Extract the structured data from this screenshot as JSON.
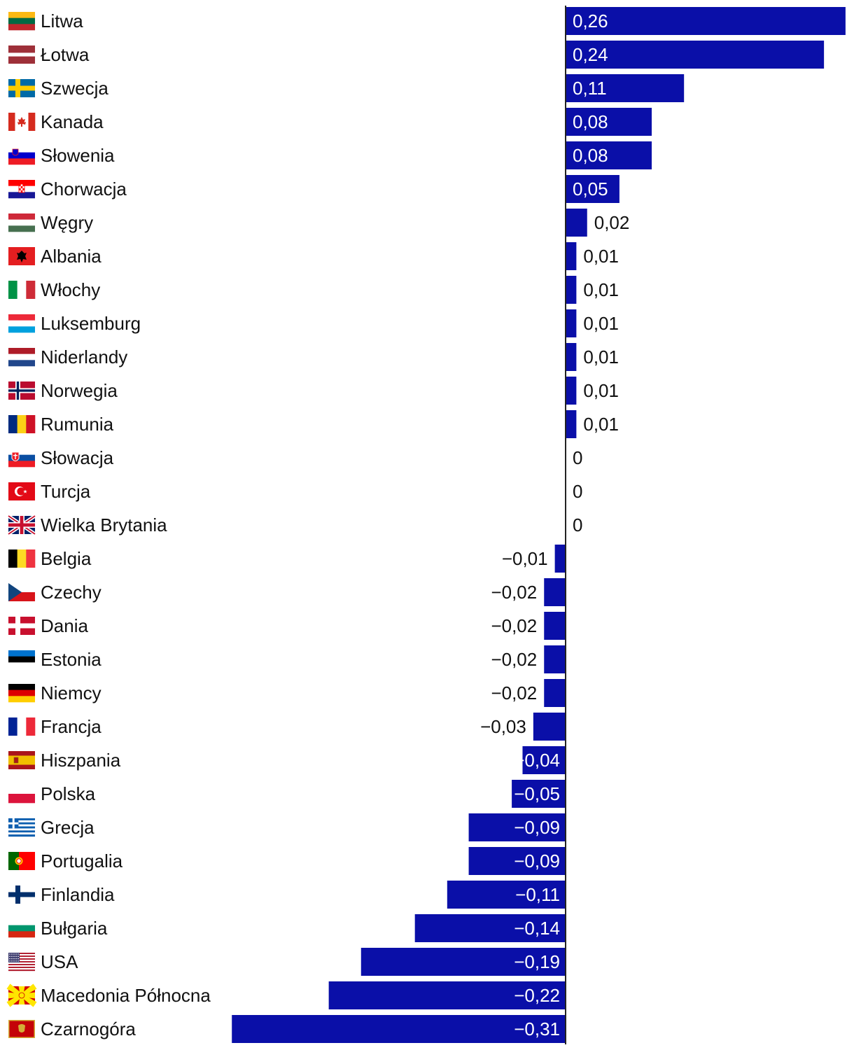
{
  "chart_data": {
    "type": "bar",
    "orientation": "horizontal",
    "bar_color": "#0a0fa8",
    "xlim": [
      -0.32,
      0.27
    ],
    "categories": [
      {
        "name": "Litwa",
        "flag": "lithuania-flag-icon",
        "value": 0.26,
        "label": "0,26"
      },
      {
        "name": "Łotwa",
        "flag": "latvia-flag-icon",
        "value": 0.24,
        "label": "0,24"
      },
      {
        "name": "Szwecja",
        "flag": "sweden-flag-icon",
        "value": 0.11,
        "label": "0,11"
      },
      {
        "name": "Kanada",
        "flag": "canada-flag-icon",
        "value": 0.08,
        "label": "0,08"
      },
      {
        "name": "Słowenia",
        "flag": "slovenia-flag-icon",
        "value": 0.08,
        "label": "0,08"
      },
      {
        "name": "Chorwacja",
        "flag": "croatia-flag-icon",
        "value": 0.05,
        "label": "0,05"
      },
      {
        "name": "Węgry",
        "flag": "hungary-flag-icon",
        "value": 0.02,
        "label": "0,02"
      },
      {
        "name": "Albania",
        "flag": "albania-flag-icon",
        "value": 0.01,
        "label": "0,01"
      },
      {
        "name": "Włochy",
        "flag": "italy-flag-icon",
        "value": 0.01,
        "label": "0,01"
      },
      {
        "name": "Luksemburg",
        "flag": "luxembourg-flag-icon",
        "value": 0.01,
        "label": "0,01"
      },
      {
        "name": "Niderlandy",
        "flag": "netherlands-flag-icon",
        "value": 0.01,
        "label": "0,01"
      },
      {
        "name": "Norwegia",
        "flag": "norway-flag-icon",
        "value": 0.01,
        "label": "0,01"
      },
      {
        "name": "Rumunia",
        "flag": "romania-flag-icon",
        "value": 0.01,
        "label": "0,01"
      },
      {
        "name": "Słowacja",
        "flag": "slovakia-flag-icon",
        "value": 0,
        "label": "0"
      },
      {
        "name": "Turcja",
        "flag": "turkey-flag-icon",
        "value": 0,
        "label": "0"
      },
      {
        "name": "Wielka Brytania",
        "flag": "united-kingdom-flag-icon",
        "value": 0,
        "label": "0"
      },
      {
        "name": "Belgia",
        "flag": "belgium-flag-icon",
        "value": -0.01,
        "label": "−0,01"
      },
      {
        "name": "Czechy",
        "flag": "czechia-flag-icon",
        "value": -0.02,
        "label": "−0,02"
      },
      {
        "name": "Dania",
        "flag": "denmark-flag-icon",
        "value": -0.02,
        "label": "−0,02"
      },
      {
        "name": "Estonia",
        "flag": "estonia-flag-icon",
        "value": -0.02,
        "label": "−0,02"
      },
      {
        "name": "Niemcy",
        "flag": "germany-flag-icon",
        "value": -0.02,
        "label": "−0,02"
      },
      {
        "name": "Francja",
        "flag": "france-flag-icon",
        "value": -0.03,
        "label": "−0,03"
      },
      {
        "name": "Hiszpania",
        "flag": "spain-flag-icon",
        "value": -0.04,
        "label": "−0,04"
      },
      {
        "name": "Polska",
        "flag": "poland-flag-icon",
        "value": -0.05,
        "label": "−0,05"
      },
      {
        "name": "Grecja",
        "flag": "greece-flag-icon",
        "value": -0.09,
        "label": "−0,09"
      },
      {
        "name": "Portugalia",
        "flag": "portugal-flag-icon",
        "value": -0.09,
        "label": "−0,09"
      },
      {
        "name": "Finlandia",
        "flag": "finland-flag-icon",
        "value": -0.11,
        "label": "−0,11"
      },
      {
        "name": "Bułgaria",
        "flag": "bulgaria-flag-icon",
        "value": -0.14,
        "label": "−0,14"
      },
      {
        "name": "USA",
        "flag": "usa-flag-icon",
        "value": -0.19,
        "label": "−0,19"
      },
      {
        "name": "Macedonia Północna",
        "flag": "north-macedonia-flag-icon",
        "value": -0.22,
        "label": "−0,22"
      },
      {
        "name": "Czarnogóra",
        "flag": "montenegro-flag-icon",
        "value": -0.31,
        "label": "−0,31"
      }
    ]
  }
}
